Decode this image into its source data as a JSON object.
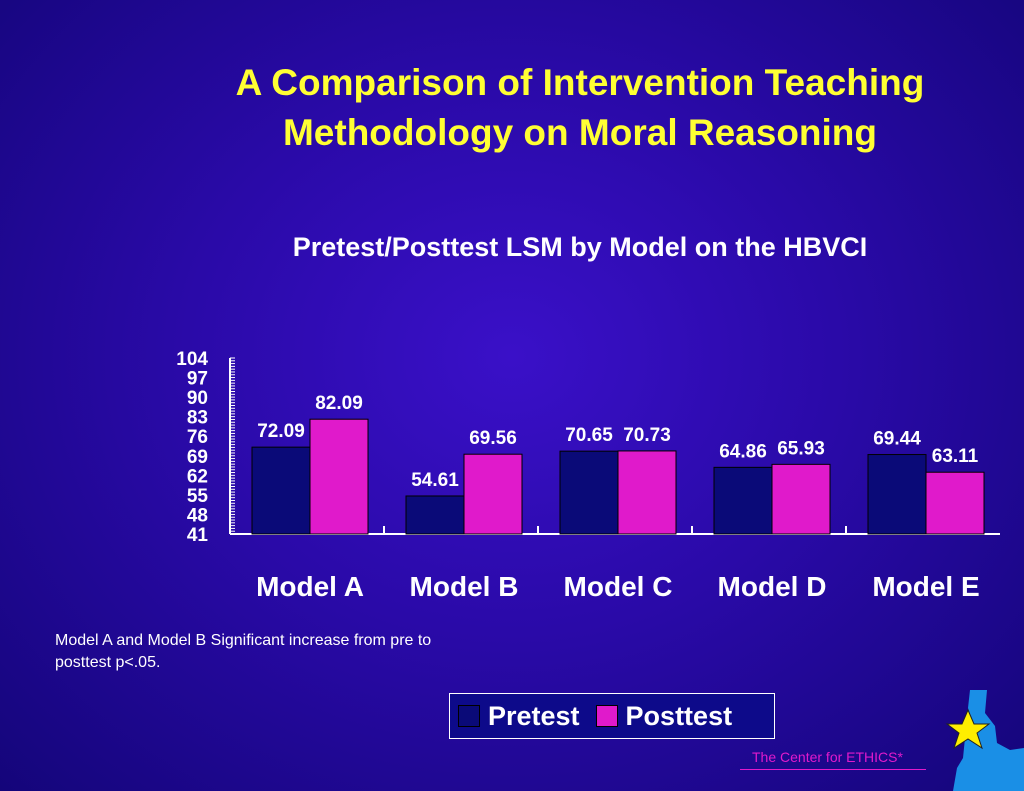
{
  "slide": {
    "title": "A Comparison of Intervention Teaching Methodology on Moral Reasoning",
    "note": "Model A and Model B Significant increase from pre to posttest p<.05.",
    "footer": "The Center for ETHICS*"
  },
  "colors": {
    "title": "#ffff33",
    "pretest": "#0a0a78",
    "posttest": "#e01acb",
    "text": "#ffffff"
  },
  "legend": {
    "items": [
      {
        "label": "Pretest",
        "color": "#0a0a78"
      },
      {
        "label": "Posttest",
        "color": "#e01acb"
      }
    ]
  },
  "logo": {
    "icon": "state-outline-with-star-icon"
  },
  "chart_data": {
    "type": "bar",
    "title": "Pretest/Posttest LSM by Model on the HBVCI",
    "categories": [
      "Model A",
      "Model B",
      "Model C",
      "Model D",
      "Model E"
    ],
    "series": [
      {
        "name": "Pretest",
        "values": [
          72.09,
          54.61,
          70.65,
          64.86,
          69.44
        ]
      },
      {
        "name": "Posttest",
        "values": [
          82.09,
          69.56,
          70.73,
          65.93,
          63.11
        ]
      }
    ],
    "value_labels": [
      [
        "72.09",
        "54.61",
        "70.65",
        "64.86",
        "69.44"
      ],
      [
        "82.09",
        "69.56",
        "70.73",
        "65.93",
        "63.11"
      ]
    ],
    "yticks": [
      "41",
      "48",
      "55",
      "62",
      "69",
      "76",
      "83",
      "90",
      "97",
      "104"
    ],
    "ylim": [
      41,
      104
    ],
    "xlabel": "",
    "ylabel": "",
    "grid": false,
    "legend_position": "bottom"
  }
}
